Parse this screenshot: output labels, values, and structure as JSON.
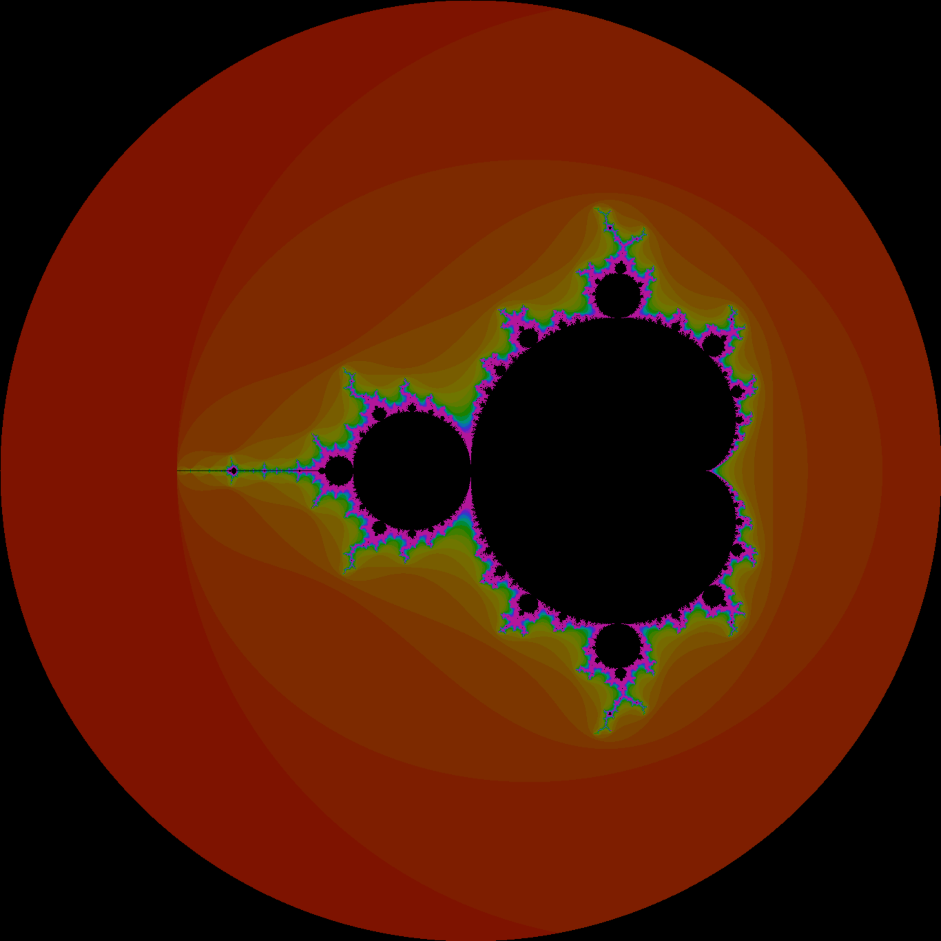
{
  "image": {
    "subject": "mandelbrot-set",
    "background_color": "#000000",
    "set_color": "#000000",
    "outer_color": "#7e1300",
    "view": {
      "center_re": -0.75,
      "center_im": 0.0,
      "radius": 2.0
    },
    "render": {
      "max_iterations": 120,
      "escape_radius": 2.0
    },
    "palette": [
      "#7e1300",
      "#7e1e00",
      "#7d2a00",
      "#7c3600",
      "#7b4300",
      "#7a5000",
      "#785d00",
      "#766a00",
      "#6f7600",
      "#5e7a00",
      "#3f7e00",
      "#1a8000",
      "#008a3a",
      "#008f7a",
      "#0a6fae",
      "#2c3fc9",
      "#5a22c8",
      "#8a1bb6",
      "#b3169a"
    ]
  }
}
